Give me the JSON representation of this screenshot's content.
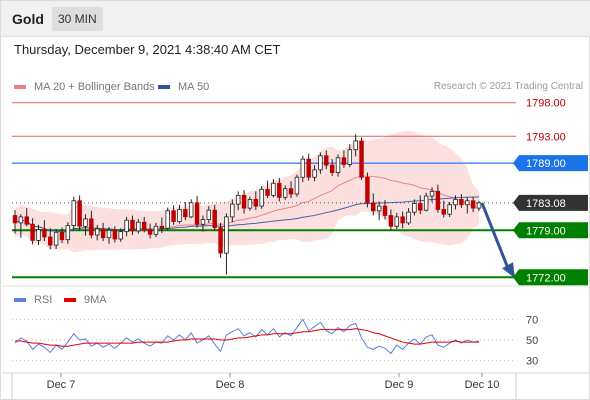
{
  "header": {
    "instrument": "Gold",
    "timeframe": "30 MIN"
  },
  "datetime": "Thursday, December 9, 2021 4:38:40 AM CET",
  "legend": {
    "ma20_bb": {
      "label": "MA 20 + Bollinger Bands",
      "color": "#f08080"
    },
    "ma50": {
      "label": "MA 50",
      "color": "#2f5597"
    }
  },
  "copyright": "Research © 2021 Trading Central",
  "rsi_legend": {
    "rsi": {
      "label": "RSI",
      "color": "#5b7fdb"
    },
    "ma9": {
      "label": "9MA",
      "color": "#e00000"
    }
  },
  "chart_data": [
    {
      "type": "candlestick",
      "title": "",
      "x_ticks": [
        "Dec 7",
        "Dec 8",
        "Dec 9",
        "Dec 10"
      ],
      "ylim": [
        1771,
        1799
      ],
      "levels": [
        {
          "value": 1798.0,
          "label": "1798.00",
          "style": "resistance-thin",
          "color": "#e06060"
        },
        {
          "value": 1793.0,
          "label": "1793.00",
          "style": "resistance-thin",
          "color": "#e06060"
        },
        {
          "value": 1789.0,
          "label": "1789.00",
          "style": "pivot",
          "color": "#3b82f6"
        },
        {
          "value": 1783.08,
          "label": "1783.08",
          "style": "last-price",
          "color": "#333333"
        },
        {
          "value": 1779.0,
          "label": "1779.00",
          "style": "support",
          "color": "#008000"
        },
        {
          "value": 1772.0,
          "label": "1772.00",
          "style": "support",
          "color": "#008000"
        }
      ],
      "forecast_arrow": {
        "from": 1783.08,
        "to": 1772.0,
        "color": "#2f5597"
      },
      "candles": [
        [
          1781.2,
          1782.0,
          1778.5,
          1780.1
        ],
        [
          1780.1,
          1781.4,
          1777.9,
          1781.0
        ],
        [
          1781.0,
          1782.3,
          1779.6,
          1779.9
        ],
        [
          1779.9,
          1780.8,
          1776.9,
          1777.5
        ],
        [
          1777.5,
          1779.8,
          1776.8,
          1779.1
        ],
        [
          1779.1,
          1780.5,
          1777.4,
          1778.0
        ],
        [
          1778.0,
          1779.3,
          1776.2,
          1776.8
        ],
        [
          1776.8,
          1779.2,
          1776.2,
          1778.7
        ],
        [
          1778.7,
          1779.4,
          1777.1,
          1777.6
        ],
        [
          1777.6,
          1780.2,
          1777.0,
          1779.7
        ],
        [
          1779.7,
          1784.0,
          1779.1,
          1783.4
        ],
        [
          1783.4,
          1784.2,
          1778.9,
          1779.6
        ],
        [
          1779.6,
          1781.4,
          1778.2,
          1780.7
        ],
        [
          1780.7,
          1781.9,
          1777.8,
          1778.3
        ],
        [
          1778.3,
          1779.8,
          1777.5,
          1779.2
        ],
        [
          1779.2,
          1780.1,
          1777.4,
          1777.9
        ],
        [
          1777.9,
          1779.5,
          1777.0,
          1779.0
        ],
        [
          1779.0,
          1779.6,
          1777.2,
          1777.7
        ],
        [
          1777.7,
          1779.3,
          1777.3,
          1778.8
        ],
        [
          1778.8,
          1781.0,
          1778.1,
          1780.5
        ],
        [
          1780.5,
          1781.2,
          1778.3,
          1778.9
        ],
        [
          1778.9,
          1780.7,
          1778.5,
          1780.2
        ],
        [
          1780.2,
          1781.0,
          1778.7,
          1779.1
        ],
        [
          1779.1,
          1780.0,
          1777.8,
          1778.4
        ],
        [
          1778.4,
          1780.1,
          1778.0,
          1779.6
        ],
        [
          1779.6,
          1780.9,
          1778.6,
          1779.3
        ],
        [
          1779.3,
          1782.4,
          1779.0,
          1781.9
        ],
        [
          1781.9,
          1782.7,
          1779.8,
          1780.3
        ],
        [
          1780.3,
          1782.8,
          1780.0,
          1782.1
        ],
        [
          1782.1,
          1783.2,
          1780.5,
          1781.0
        ],
        [
          1781.0,
          1783.6,
          1780.8,
          1783.1
        ],
        [
          1783.1,
          1784.1,
          1779.4,
          1779.9
        ],
        [
          1779.9,
          1781.2,
          1778.8,
          1780.6
        ],
        [
          1780.6,
          1782.6,
          1780.1,
          1782.0
        ],
        [
          1782.0,
          1782.8,
          1778.9,
          1779.4
        ],
        [
          1779.4,
          1780.1,
          1774.9,
          1775.6
        ],
        [
          1775.6,
          1781.5,
          1772.4,
          1781.0
        ],
        [
          1781.0,
          1783.6,
          1780.2,
          1782.9
        ],
        [
          1782.9,
          1784.8,
          1782.0,
          1784.2
        ],
        [
          1784.2,
          1785.0,
          1781.5,
          1782.3
        ],
        [
          1782.3,
          1784.0,
          1781.9,
          1783.6
        ],
        [
          1783.6,
          1784.8,
          1782.0,
          1782.6
        ],
        [
          1782.6,
          1785.6,
          1782.2,
          1785.1
        ],
        [
          1785.1,
          1786.4,
          1783.8,
          1784.2
        ],
        [
          1784.2,
          1786.6,
          1783.9,
          1786.0
        ],
        [
          1786.0,
          1786.8,
          1783.3,
          1783.9
        ],
        [
          1783.9,
          1785.7,
          1783.5,
          1785.2
        ],
        [
          1785.2,
          1786.3,
          1783.8,
          1784.4
        ],
        [
          1784.4,
          1787.3,
          1784.0,
          1786.9
        ],
        [
          1786.9,
          1790.1,
          1786.2,
          1789.6
        ],
        [
          1789.6,
          1790.4,
          1786.4,
          1786.9
        ],
        [
          1786.9,
          1788.7,
          1786.3,
          1788.0
        ],
        [
          1788.0,
          1790.6,
          1787.4,
          1790.1
        ],
        [
          1790.1,
          1790.9,
          1788.1,
          1788.7
        ],
        [
          1788.7,
          1789.6,
          1787.1,
          1787.6
        ],
        [
          1787.6,
          1790.3,
          1787.0,
          1789.8
        ],
        [
          1789.8,
          1790.9,
          1788.3,
          1788.8
        ],
        [
          1788.8,
          1791.8,
          1788.4,
          1791.0
        ],
        [
          1791.0,
          1793.3,
          1790.0,
          1792.3
        ],
        [
          1792.3,
          1792.8,
          1786.5,
          1786.9
        ],
        [
          1786.9,
          1787.6,
          1782.4,
          1783.1
        ],
        [
          1783.1,
          1784.5,
          1781.2,
          1781.9
        ],
        [
          1781.9,
          1783.3,
          1780.5,
          1782.6
        ],
        [
          1782.6,
          1783.5,
          1780.6,
          1781.2
        ],
        [
          1781.2,
          1782.1,
          1779.0,
          1779.6
        ],
        [
          1779.6,
          1781.6,
          1779.2,
          1781.0
        ],
        [
          1781.0,
          1781.8,
          1779.3,
          1780.1
        ],
        [
          1780.1,
          1782.3,
          1779.8,
          1781.7
        ],
        [
          1781.7,
          1783.6,
          1781.2,
          1783.0
        ],
        [
          1783.0,
          1784.2,
          1781.4,
          1782.0
        ],
        [
          1782.0,
          1784.6,
          1781.8,
          1784.1
        ],
        [
          1784.1,
          1785.4,
          1783.2,
          1784.8
        ],
        [
          1784.8,
          1785.8,
          1781.6,
          1782.1
        ],
        [
          1782.1,
          1783.4,
          1780.9,
          1781.4
        ],
        [
          1781.4,
          1783.2,
          1781.0,
          1782.8
        ],
        [
          1782.8,
          1784.2,
          1782.1,
          1783.6
        ],
        [
          1783.6,
          1784.4,
          1782.3,
          1782.8
        ],
        [
          1782.8,
          1783.9,
          1781.5,
          1783.4
        ],
        [
          1783.4,
          1784.0,
          1781.7,
          1782.3
        ],
        [
          1782.3,
          1783.4,
          1781.9,
          1783.08
        ]
      ]
    },
    {
      "type": "line",
      "x_ticks": [
        "Dec 7",
        "Dec 8",
        "Dec 9",
        "Dec 10"
      ],
      "y_ticks": [
        70,
        50,
        30
      ],
      "ylim": [
        22,
        78
      ],
      "series": [
        {
          "name": "RSI",
          "color": "#5b7fdb",
          "values": [
            47,
            52,
            49,
            41,
            46,
            43,
            38,
            45,
            41,
            48,
            56,
            50,
            51,
            44,
            47,
            43,
            46,
            42,
            47,
            52,
            48,
            51,
            47,
            44,
            48,
            47,
            54,
            50,
            55,
            50,
            57,
            47,
            50,
            54,
            46,
            39,
            55,
            58,
            61,
            54,
            57,
            53,
            60,
            55,
            61,
            53,
            57,
            54,
            62,
            70,
            59,
            63,
            67,
            59,
            56,
            62,
            58,
            64,
            66,
            52,
            43,
            41,
            44,
            42,
            37,
            45,
            41,
            47,
            51,
            46,
            53,
            55,
            45,
            43,
            47,
            50,
            47,
            50,
            48,
            49
          ]
        },
        {
          "name": "9MA",
          "color": "#e00000",
          "values": [
            49,
            49,
            48,
            47,
            47,
            46,
            45,
            45,
            44,
            44,
            45,
            46,
            47,
            47,
            47,
            47,
            47,
            47,
            47,
            47,
            47,
            48,
            48,
            48,
            48,
            48,
            48,
            49,
            50,
            50,
            51,
            51,
            51,
            51,
            51,
            50,
            50,
            51,
            52,
            52,
            53,
            54,
            55,
            55,
            56,
            56,
            56,
            56,
            57,
            58,
            58,
            59,
            60,
            60,
            60,
            60,
            60,
            60,
            61,
            60,
            59,
            57,
            56,
            54,
            52,
            50,
            48,
            47,
            46,
            46,
            47,
            48,
            48,
            48,
            48,
            49,
            48,
            48,
            48,
            48
          ]
        }
      ]
    }
  ]
}
